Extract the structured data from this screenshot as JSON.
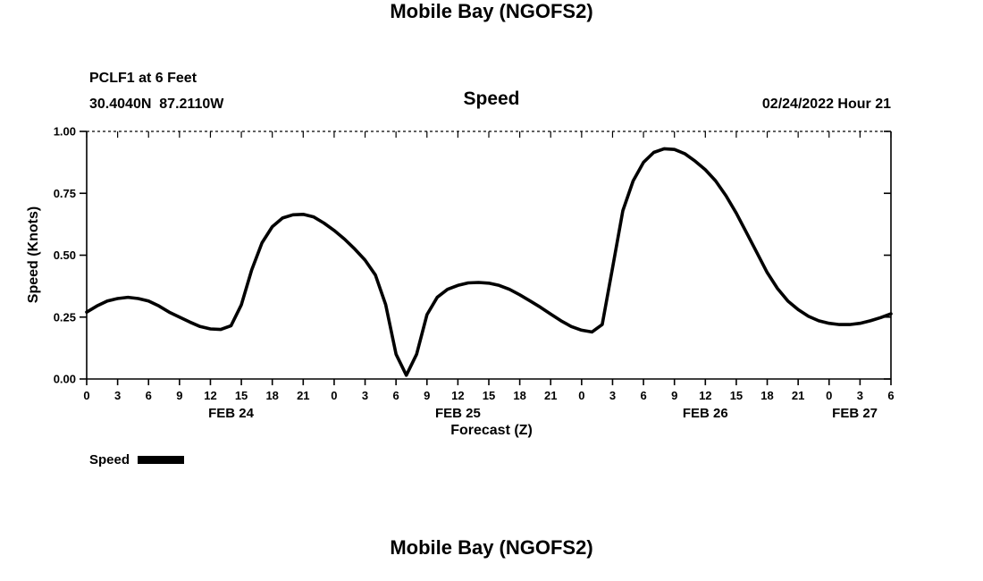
{
  "page": {
    "title_top": "Mobile Bay (NGOFS2)",
    "title_bottom": "Mobile Bay (NGOFS2)"
  },
  "header": {
    "station": "PCLF1 at 6 Feet",
    "coordinates": "30.4040N  87.2110W",
    "panel_title": "Speed",
    "datetime": "02/24/2022 Hour 21"
  },
  "legend": {
    "label": "Speed",
    "color": "#000000"
  },
  "chart_data": {
    "type": "line",
    "title": "Speed",
    "xlabel": "Forecast (Z)",
    "ylabel": "Speed (Knots)",
    "ylim": [
      0.0,
      1.0
    ],
    "xlim_hours": [
      0,
      78
    ],
    "grid": "top dotted gridline at y=1.00 only; boxed axes with inward top/right ticks",
    "legend_position": "below-left",
    "y_ticks": [
      0.0,
      0.25,
      0.5,
      0.75,
      1.0
    ],
    "y_tick_labels": [
      "0.00",
      "0.25",
      "0.50",
      "0.75",
      "1.00"
    ],
    "x_ticks_hours": [
      0,
      3,
      6,
      9,
      12,
      15,
      18,
      21,
      24,
      27,
      30,
      33,
      36,
      39,
      42,
      45,
      48,
      51,
      54,
      57,
      60,
      63,
      66,
      69,
      72,
      75,
      78
    ],
    "x_tick_labels": [
      "0",
      "3",
      "6",
      "9",
      "12",
      "15",
      "18",
      "21",
      "0",
      "3",
      "6",
      "9",
      "12",
      "15",
      "18",
      "21",
      "0",
      "3",
      "6",
      "9",
      "12",
      "15",
      "18",
      "21",
      "0",
      "3",
      "6"
    ],
    "day_labels": [
      {
        "label": "FEB 24",
        "hour": 14
      },
      {
        "label": "FEB 25",
        "hour": 36
      },
      {
        "label": "FEB 26",
        "hour": 60
      },
      {
        "label": "FEB 27",
        "hour": 74.5
      }
    ],
    "series": [
      {
        "name": "Speed",
        "color": "#000000",
        "x": [
          0,
          1,
          2,
          3,
          4,
          5,
          6,
          7,
          8,
          9,
          10,
          11,
          12,
          13,
          14,
          15,
          16,
          17,
          18,
          19,
          20,
          21,
          22,
          23,
          24,
          25,
          26,
          27,
          28,
          29,
          30,
          31,
          32,
          33,
          34,
          35,
          36,
          37,
          38,
          39,
          40,
          41,
          42,
          43,
          44,
          45,
          46,
          47,
          48,
          49,
          50,
          51,
          52,
          53,
          54,
          55,
          56,
          57,
          58,
          59,
          60,
          61,
          62,
          63,
          64,
          65,
          66,
          67,
          68,
          69,
          70,
          71,
          72,
          73,
          74,
          75,
          76,
          77,
          78
        ],
        "y": [
          0.27,
          0.295,
          0.315,
          0.325,
          0.33,
          0.325,
          0.315,
          0.295,
          0.27,
          0.25,
          0.23,
          0.212,
          0.202,
          0.2,
          0.215,
          0.3,
          0.44,
          0.55,
          0.615,
          0.65,
          0.663,
          0.665,
          0.655,
          0.63,
          0.6,
          0.565,
          0.525,
          0.48,
          0.42,
          0.3,
          0.1,
          0.015,
          0.1,
          0.26,
          0.33,
          0.362,
          0.378,
          0.388,
          0.39,
          0.387,
          0.378,
          0.362,
          0.34,
          0.315,
          0.29,
          0.262,
          0.235,
          0.212,
          0.197,
          0.19,
          0.22,
          0.45,
          0.68,
          0.8,
          0.875,
          0.915,
          0.93,
          0.927,
          0.91,
          0.88,
          0.845,
          0.8,
          0.74,
          0.67,
          0.59,
          0.51,
          0.43,
          0.365,
          0.315,
          0.28,
          0.253,
          0.235,
          0.225,
          0.22,
          0.22,
          0.225,
          0.235,
          0.248,
          0.263
        ]
      }
    ]
  }
}
